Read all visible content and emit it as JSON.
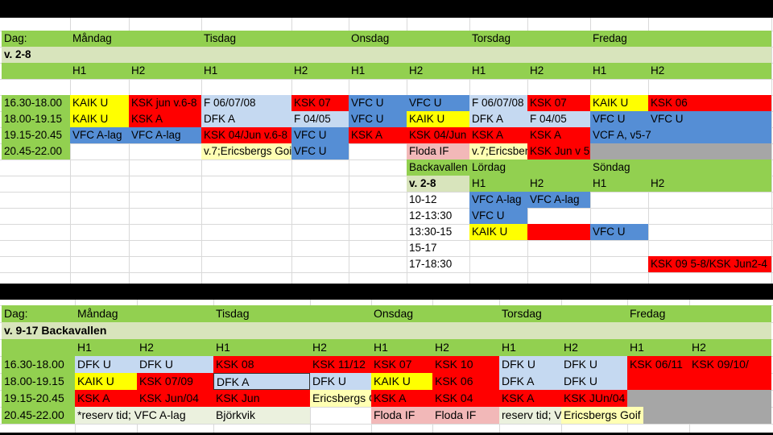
{
  "colors": {
    "green": "#92d050",
    "light_green": "#d8e4bc",
    "yellow": "#ffff00",
    "red": "#ff0000",
    "blue": "#558ed5",
    "light_blue": "#c5d9f1",
    "pale_yellow": "#ffffb3",
    "pink": "#f2b8b8",
    "gray": "#a6a6a6",
    "pale_green": "#ebf1de"
  },
  "schedule1": {
    "header": [
      "Dag:",
      "Måndag",
      "Tisdag",
      "Onsdag",
      "Torsdag",
      "Fredag"
    ],
    "week": "v. 2-8",
    "halls": [
      "H1",
      "H2",
      "H1",
      "H2",
      "H1",
      "H2",
      "H1",
      "H2",
      "H1",
      "H2"
    ],
    "rows": [
      {
        "time": "16.30-18.00",
        "cells": [
          "KAIK U",
          "KSK jun v.6-8",
          "F 06/07/08",
          "KSK 07",
          "VFC U",
          "VFC U",
          "F 06/07/08",
          "KSK 07",
          "KAIK U",
          "KSK 06"
        ]
      },
      {
        "time": "18.00-19.15",
        "cells": [
          "KAIK U",
          "KSK A",
          "DFK A",
          "F 04/05",
          "VFC U",
          "KAIK U",
          "DFK A",
          "F 04/05",
          "VFC U",
          "VFC U"
        ]
      },
      {
        "time": "19.15-20.45",
        "cells": [
          "VFC A-lag",
          "VFC A-lag",
          "KSK 04/Jun v.6-8",
          "VFC U",
          "KSK A",
          "KSK 04/Jun",
          "KSK A",
          "KSK A",
          "VCF A, v5-7",
          ""
        ]
      },
      {
        "time": "20.45-22.00",
        "cells": [
          "",
          "",
          "v.7;Ericsbergs Goif",
          "VFC U",
          "",
          "Floda IF",
          "v.7;Ericsbergs Goif",
          "KSK Jun v 5",
          "",
          ""
        ]
      }
    ]
  },
  "weekend": {
    "header": [
      "Backavallen",
      "Lördag",
      "Söndag"
    ],
    "week": "v. 2-8",
    "halls": [
      "H1",
      "H2",
      "H1",
      "H2"
    ],
    "rows": [
      {
        "time": "10-12",
        "cells": [
          "VFC A-lag",
          "VFC A-lag",
          "",
          ""
        ]
      },
      {
        "time": "12-13:30",
        "cells": [
          "VFC U",
          "",
          "",
          ""
        ]
      },
      {
        "time": "13:30-15",
        "cells": [
          "KAIK U",
          "",
          "VFC U",
          ""
        ]
      },
      {
        "time": "15-17",
        "cells": [
          "",
          "",
          "",
          ""
        ]
      },
      {
        "time": "17-18:30",
        "cells": [
          "",
          "",
          "",
          "KSK 09 5-8/KSK Jun2-4"
        ]
      }
    ]
  },
  "schedule2": {
    "header": [
      "Dag:",
      "Måndag",
      "Tisdag",
      "Onsdag",
      "Torsdag",
      "Fredag"
    ],
    "week": "v. 9-17 Backavallen",
    "halls": [
      "H1",
      "H2",
      "H1",
      "H2",
      "H1",
      "H2",
      "H1",
      "H2",
      "H1",
      "H2"
    ],
    "rows": [
      {
        "time": "16.30-18.00",
        "cells": [
          "DFK U",
          "DFK U",
          "KSK 08",
          "KSK 11/12",
          "KSK 07",
          "KSK 10",
          "DFK U",
          "DFK U",
          "KSK 06/11",
          "KSK 09/10/"
        ]
      },
      {
        "time": "18.00-19.15",
        "cells": [
          "KAIK U",
          "KSK 07/09",
          "DFK A",
          "DFK U",
          "KAIK U",
          "KSK 06",
          "DFK A",
          "DFK U",
          "",
          ""
        ]
      },
      {
        "time": "19.15-20.45",
        "cells": [
          "KSK A",
          "KSK Jun/04",
          "KSK Jun",
          "Ericsbergs Goif",
          "KSK A",
          "KSK 04",
          "KSK A",
          "KSK JUn/04",
          "",
          ""
        ]
      },
      {
        "time": "20.45-22.00",
        "cells": [
          "*reserv tid; VFC A-lag",
          "",
          "Björkvik",
          "",
          "Floda IF",
          "Floda IF",
          "reserv tid; VFC A-lag",
          "Ericsbergs Goif",
          "",
          ""
        ]
      }
    ]
  }
}
